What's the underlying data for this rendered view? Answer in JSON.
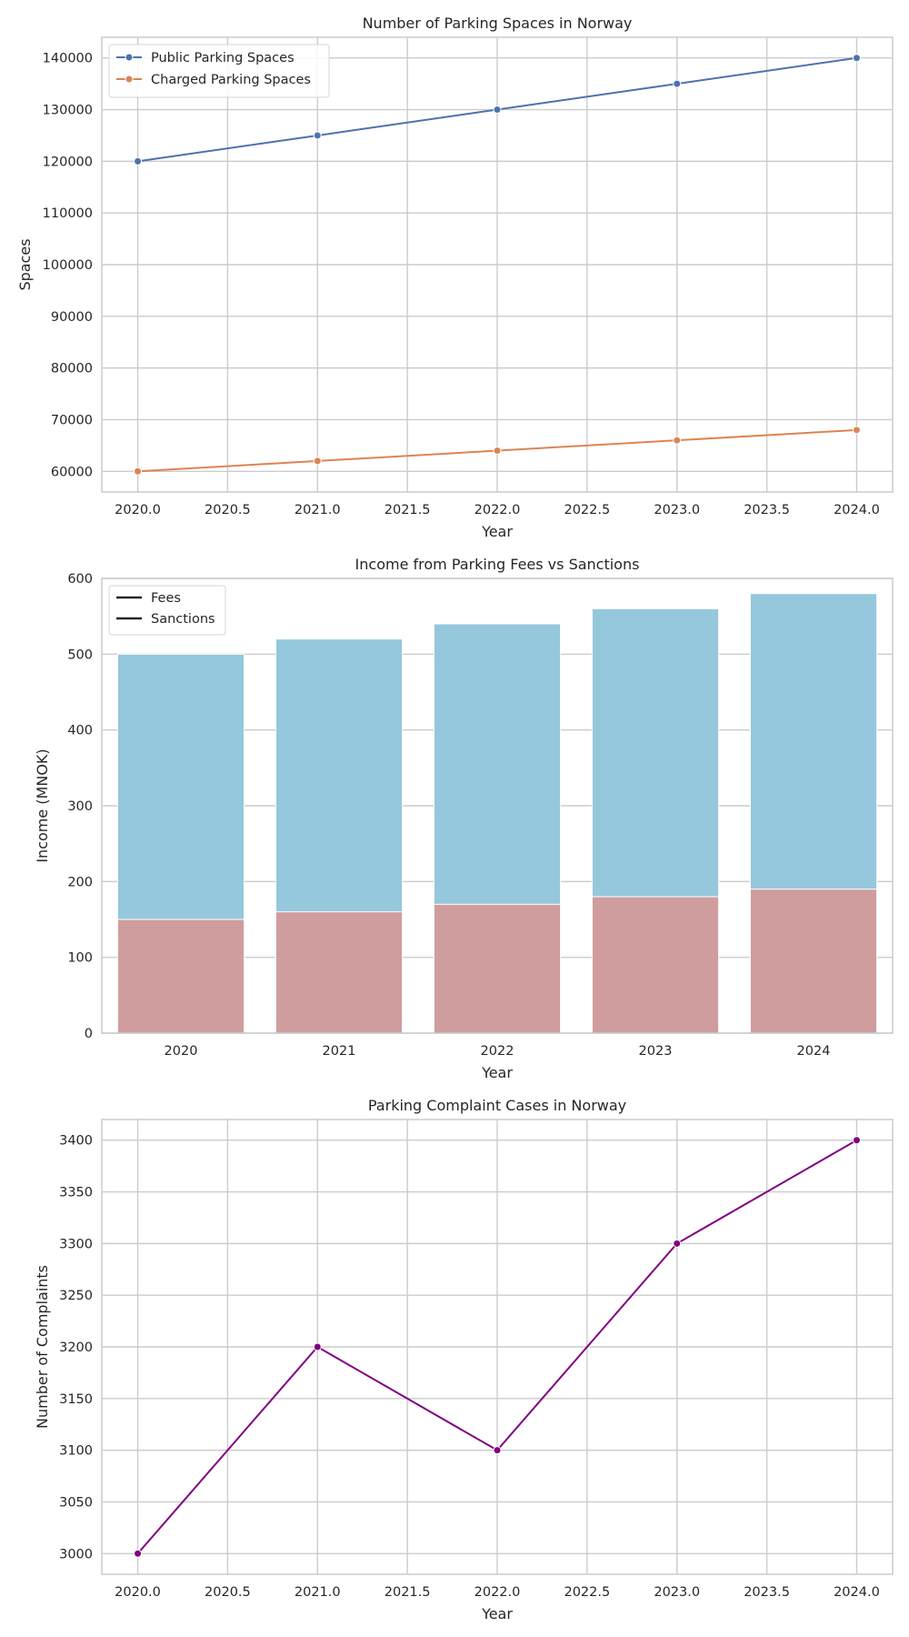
{
  "chart_data": [
    {
      "type": "line",
      "title": "Number of Parking Spaces in Norway",
      "xlabel": "Year",
      "ylabel": "Spaces",
      "x": [
        2020,
        2021,
        2022,
        2023,
        2024
      ],
      "xlim": [
        2019.8,
        2024.2
      ],
      "ylim": [
        56000,
        144000
      ],
      "xticks": [
        "2020.0",
        "2020.5",
        "2021.0",
        "2021.5",
        "2022.0",
        "2022.5",
        "2023.0",
        "2023.5",
        "2024.0"
      ],
      "yticks": [
        "60000",
        "70000",
        "80000",
        "90000",
        "100000",
        "110000",
        "120000",
        "130000",
        "140000"
      ],
      "grid": true,
      "legend_position": "top-left",
      "series": [
        {
          "name": "Public Parking Spaces",
          "values": [
            120000,
            125000,
            130000,
            135000,
            140000
          ],
          "color": "#4c72b0"
        },
        {
          "name": "Charged Parking Spaces",
          "values": [
            60000,
            62000,
            64000,
            66000,
            68000
          ],
          "color": "#dd8452"
        }
      ]
    },
    {
      "type": "bar",
      "title": "Income from Parking Fees vs Sanctions",
      "xlabel": "Year",
      "ylabel": "Income (MNOK)",
      "categories": [
        "2020",
        "2021",
        "2022",
        "2023",
        "2024"
      ],
      "ylim": [
        0,
        600
      ],
      "yticks": [
        "0",
        "100",
        "200",
        "300",
        "400",
        "500",
        "600"
      ],
      "grid": true,
      "legend_position": "top-left",
      "series": [
        {
          "name": "Fees",
          "values": [
            500,
            520,
            540,
            560,
            580
          ],
          "color": "#95c8dc"
        },
        {
          "name": "Sanctions",
          "values": [
            150,
            160,
            170,
            180,
            190
          ],
          "color": "#cf9d9d"
        }
      ]
    },
    {
      "type": "line",
      "title": "Parking Complaint Cases in Norway",
      "xlabel": "Year",
      "ylabel": "Number of Complaints",
      "x": [
        2020,
        2021,
        2022,
        2023,
        2024
      ],
      "xlim": [
        2019.8,
        2024.2
      ],
      "ylim": [
        2980,
        3420
      ],
      "xticks": [
        "2020.0",
        "2020.5",
        "2021.0",
        "2021.5",
        "2022.0",
        "2022.5",
        "2023.0",
        "2023.5",
        "2024.0"
      ],
      "yticks": [
        "3000",
        "3050",
        "3100",
        "3150",
        "3200",
        "3250",
        "3300",
        "3350",
        "3400"
      ],
      "grid": true,
      "series": [
        {
          "values": [
            3000,
            3200,
            3100,
            3300,
            3400
          ],
          "color": "#800080"
        }
      ]
    }
  ]
}
